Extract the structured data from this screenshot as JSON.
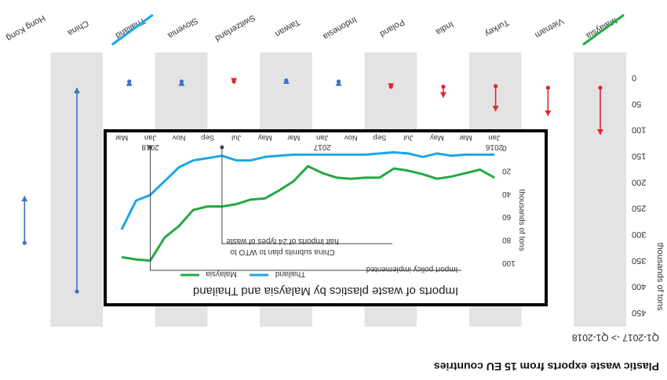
{
  "figure": {
    "title": "Plastic waste exports from 15 EU countries",
    "subtitle": "Q1-2017 -> Q1-2018",
    "colors": {
      "band": "#e3e3e3",
      "decrease": "#3a72c8",
      "increase": "#e0242c",
      "malaysia": "#22aa44",
      "thailand": "#19a8e6"
    }
  },
  "chart_data": [
    {
      "type": "range",
      "title": "Plastic waste exports from 15 EU countries",
      "subtitle": "Q1-2017 -> Q1-2018",
      "ylabel": "thousands of tons",
      "yticks": [
        0,
        50,
        100,
        150,
        200,
        250,
        300,
        350,
        400,
        450
      ],
      "ytick_labels": [
        "0",
        "50",
        "100",
        "150",
        "200",
        "250",
        "300",
        "350",
        "400",
        "450"
      ],
      "ylim": [
        0,
        450
      ],
      "categories": [
        "Malaysia",
        "Vietnam",
        "Turkey",
        "India",
        "Poland",
        "Indonesia",
        "Taiwan",
        "Switzerland",
        "Slovenia",
        "Thailand",
        "China",
        "Hong Kong"
      ],
      "start": [
        18,
        18,
        15,
        16,
        16,
        6,
        4,
        6,
        6,
        6,
        408,
        315
      ],
      "end": [
        108,
        72,
        63,
        37,
        20,
        4,
        0,
        10,
        4,
        4,
        18,
        225
      ],
      "highlighted": {
        "Malaysia": "malaysia",
        "Thailand": "thailand"
      },
      "grid": false
    },
    {
      "type": "line",
      "title": "Imports of waste plastics by Malaysia and Thailand",
      "ylabel": "thousands of tons",
      "ylim": [
        0,
        100
      ],
      "yticks": [
        0,
        20,
        40,
        60,
        80,
        100
      ],
      "ytick_labels": [
        "0",
        "20",
        "40",
        "60",
        "80",
        "100"
      ],
      "x_months": [
        "Jan",
        "Mar",
        "May",
        "Jul",
        "Sep",
        "Nov",
        "Jan",
        "Mar",
        "May",
        "Jul",
        "Sep",
        "Nov",
        "Jan",
        "Mar"
      ],
      "x_years": [
        {
          "label": "2016",
          "month": 0
        },
        {
          "label": "2017",
          "month": 12
        },
        {
          "label": "2018",
          "month": 24
        }
      ],
      "series": [
        {
          "name": "Malaysia",
          "color": "malaysia",
          "x": [
            0,
            1,
            2,
            3,
            4,
            5,
            6,
            7,
            8,
            9,
            10,
            11,
            12,
            13,
            14,
            15,
            16,
            17,
            18,
            19,
            20,
            21,
            22,
            23,
            24,
            25,
            26
          ],
          "values": [
            25,
            18,
            21,
            24,
            26,
            22,
            19,
            17,
            25,
            25,
            26,
            25,
            21,
            15,
            28,
            36,
            43,
            44,
            48,
            50,
            50,
            53,
            67,
            77,
            97,
            96,
            94
          ]
        },
        {
          "name": "Thailand",
          "color": "thailand",
          "x": [
            0,
            1,
            2,
            3,
            4,
            5,
            6,
            7,
            8,
            9,
            10,
            11,
            12,
            13,
            14,
            15,
            16,
            17,
            18,
            19,
            20,
            21,
            22,
            23,
            24,
            25,
            26
          ],
          "values": [
            5,
            5,
            5,
            6,
            4,
            7,
            4,
            3,
            4,
            5,
            5,
            5,
            5,
            5,
            5,
            6,
            7,
            10,
            10,
            6,
            8,
            10,
            16,
            28,
            40,
            45,
            70
          ]
        }
      ],
      "annotations": [
        {
          "text": "China submits plan to WTO to",
          "text2": "halt imports of 24 types of waste",
          "month": 19,
          "value": 0
        },
        {
          "text": "Import policy implemented",
          "month": 24,
          "value": 0
        }
      ]
    }
  ]
}
